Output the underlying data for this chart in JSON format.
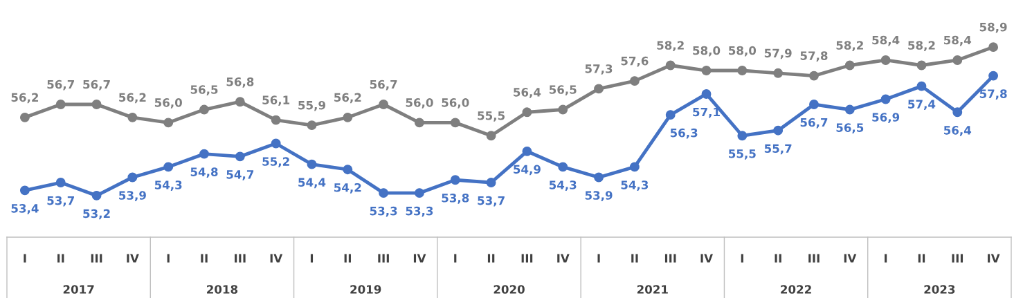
{
  "chart_data": {
    "type": "line",
    "categories": [
      "I",
      "II",
      "III",
      "IV",
      "I",
      "II",
      "III",
      "IV",
      "I",
      "II",
      "III",
      "IV",
      "I",
      "II",
      "III",
      "IV",
      "I",
      "II",
      "III",
      "IV",
      "I",
      "II",
      "III",
      "IV",
      "I",
      "II",
      "III",
      "IV"
    ],
    "annotations": [
      "2017",
      "2018",
      "2019",
      "2020",
      "2021",
      "2022",
      "2023"
    ],
    "marker": "circle",
    "line_style": "solid",
    "series": [
      {
        "color": "#7f7f7f",
        "values": [
          56.2,
          56.7,
          56.7,
          56.2,
          56.0,
          56.5,
          56.8,
          56.1,
          55.9,
          56.2,
          56.7,
          56.0,
          56.0,
          55.5,
          56.4,
          56.5,
          57.3,
          57.6,
          58.2,
          58.0,
          58.0,
          57.9,
          57.8,
          58.2,
          58.4,
          58.2,
          58.4,
          58.9
        ],
        "value_labels": [
          "56,2",
          "56,7",
          "56,7",
          "56,2",
          "56,0",
          "56,5",
          "56,8",
          "56,1",
          "55,9",
          "56,2",
          "56,7",
          "56,0",
          "56,0",
          "55,5",
          "56,4",
          "56,5",
          "57,3",
          "57,6",
          "58,2",
          "58,0",
          "58,0",
          "57,9",
          "57,8",
          "58,2",
          "58,4",
          "58,2",
          "58,4",
          "58,9"
        ]
      },
      {
        "color": "#4472c4",
        "values": [
          53.4,
          53.7,
          53.2,
          53.9,
          54.3,
          54.8,
          54.7,
          55.2,
          54.4,
          54.2,
          53.3,
          53.3,
          53.8,
          53.7,
          54.9,
          54.3,
          53.9,
          54.3,
          56.3,
          57.1,
          55.5,
          55.7,
          56.7,
          56.5,
          56.9,
          57.4,
          56.4,
          57.8
        ],
        "value_labels": [
          "53,4",
          "53,7",
          "53,2",
          "53,9",
          "54,3",
          "54,8",
          "54,7",
          "55,2",
          "54,4",
          "54,2",
          "53,3",
          "53,3",
          "53,8",
          "53,7",
          "54,9",
          "54,3",
          "53,9",
          "54,3",
          "56,3",
          "57,1",
          "55,5",
          "55,7",
          "56,7",
          "56,5",
          "56,9",
          "57,4",
          "56,4",
          "57,8"
        ]
      }
    ]
  }
}
